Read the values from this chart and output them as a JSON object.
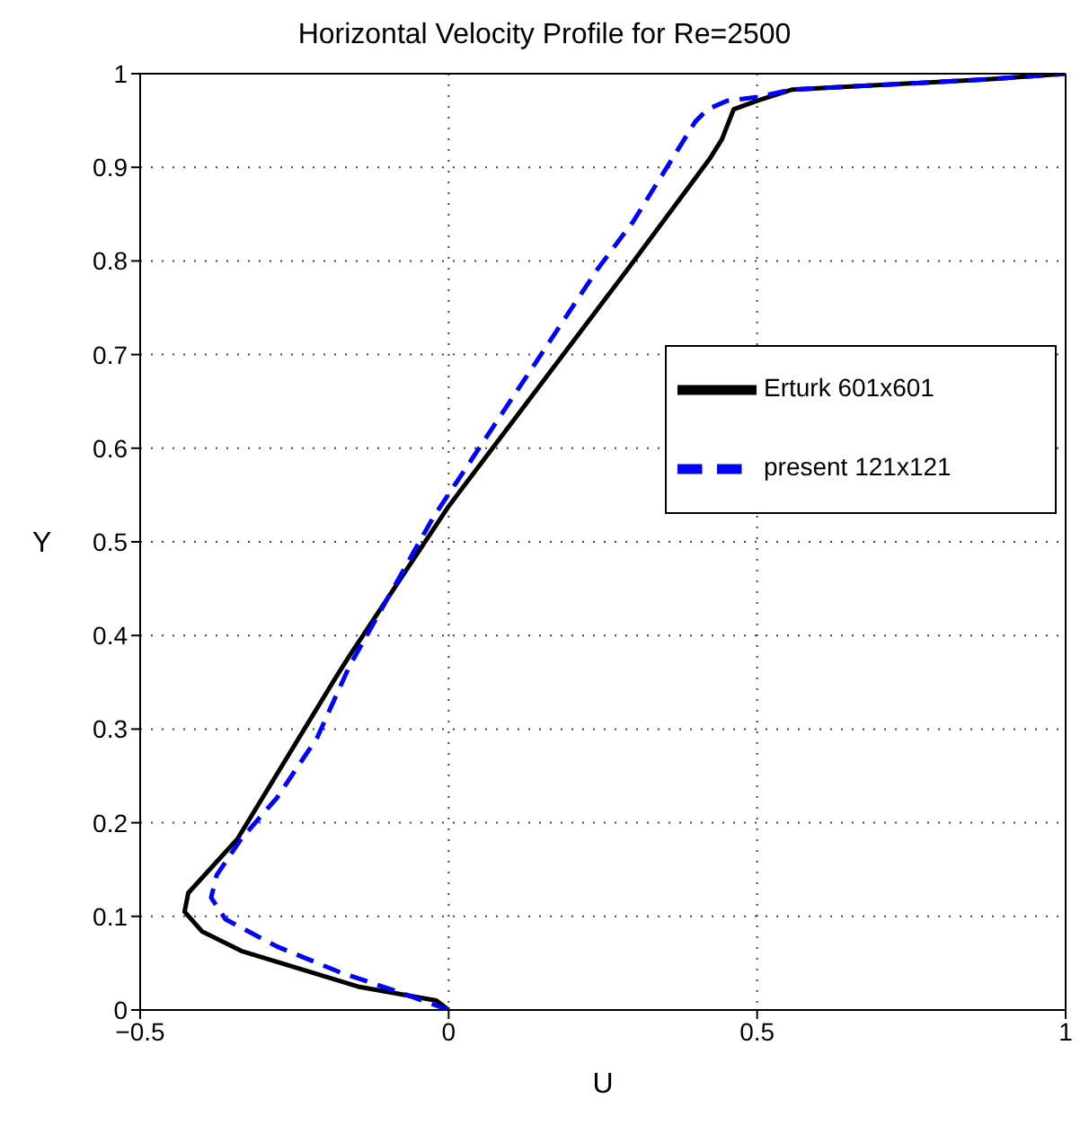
{
  "chart_data": {
    "type": "line",
    "title": "Horizontal Velocity Profile for Re=2500",
    "xlabel": "U",
    "ylabel": "Y",
    "xlim": [
      -0.5,
      1
    ],
    "xticks": [
      -0.5,
      0,
      0.5,
      1
    ],
    "ylim": [
      0,
      1
    ],
    "yticks": [
      0,
      0.1,
      0.2,
      0.3,
      0.4,
      0.5,
      0.6,
      0.7,
      0.8,
      0.9,
      1
    ],
    "grid": true,
    "legend": "right",
    "series": [
      {
        "name": "Erturk 601x601",
        "color": "#000000",
        "line_style": "solid",
        "x": [
          0,
          -0.02,
          -0.147,
          -0.336,
          -0.4,
          -0.428,
          -0.422,
          -0.342,
          -0.184,
          -0.161,
          0,
          0.29,
          0.423,
          0.443,
          0.462,
          0.5,
          0.557,
          0.874,
          1
        ],
        "values": [
          0,
          0.01,
          0.025,
          0.063,
          0.084,
          0.105,
          0.125,
          0.183,
          0.354,
          0.378,
          0.538,
          0.791,
          0.909,
          0.93,
          0.962,
          0.971,
          0.983,
          0.994,
          1
        ]
      },
      {
        "name": "present 121x121",
        "color": "#0000ff",
        "line_style": "dashed",
        "x": [
          0,
          -0.089,
          -0.175,
          -0.279,
          -0.362,
          -0.385,
          -0.376,
          -0.336,
          -0.279,
          -0.213,
          -0.161,
          -0.026,
          0.241,
          0.299,
          0.4,
          0.42,
          0.451,
          0.5,
          0.557,
          0.874,
          1
        ],
        "values": [
          0,
          0.021,
          0.04,
          0.068,
          0.097,
          0.12,
          0.144,
          0.183,
          0.226,
          0.291,
          0.367,
          0.525,
          0.791,
          0.842,
          0.949,
          0.962,
          0.971,
          0.975,
          0.983,
          0.994,
          1
        ]
      }
    ]
  }
}
